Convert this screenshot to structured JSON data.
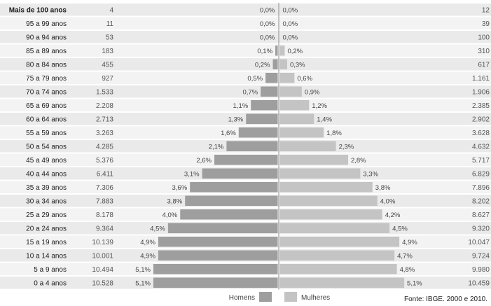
{
  "chart_data": {
    "type": "bar",
    "orientation": "horizontal-pyramid",
    "categories": [
      "Mais de 100 anos",
      "95 a 99 anos",
      "90 a 94 anos",
      "85 a 89 anos",
      "80 a 84 anos",
      "75 a 79 anos",
      "70 a 74 anos",
      "65 a 69 anos",
      "60 a 64 anos",
      "55 a 59 anos",
      "50 a 54 anos",
      "45 a 49 anos",
      "40 a 44 anos",
      "35 a 39 anos",
      "30 a 34 anos",
      "25 a 29 anos",
      "20 a 24 anos",
      "15 a 19 anos",
      "10 a 14 anos",
      "5 a 9 anos",
      "0 a 4 anos"
    ],
    "series": [
      {
        "name": "Homens",
        "color": "#9e9e9e",
        "counts": [
          "4",
          "11",
          "53",
          "183",
          "455",
          "927",
          "1.533",
          "2.208",
          "2.713",
          "3.263",
          "4.285",
          "5.376",
          "6.411",
          "7.306",
          "7.883",
          "8.178",
          "9.364",
          "10.139",
          "10.001",
          "10.494",
          "10.528"
        ],
        "percent_labels": [
          "0,0%",
          "0,0%",
          "0,0%",
          "0,1%",
          "0,2%",
          "0,5%",
          "0,7%",
          "1,1%",
          "1,3%",
          "1,6%",
          "2,1%",
          "2,6%",
          "3,1%",
          "3,6%",
          "3,8%",
          "4,0%",
          "4,5%",
          "4,9%",
          "4,9%",
          "5,1%",
          "5,1%"
        ],
        "values": [
          0.0,
          0.0,
          0.0,
          0.1,
          0.2,
          0.5,
          0.7,
          1.1,
          1.3,
          1.6,
          2.1,
          2.6,
          3.1,
          3.6,
          3.8,
          4.0,
          4.5,
          4.9,
          4.9,
          5.1,
          5.1
        ]
      },
      {
        "name": "Mulheres",
        "color": "#c4c4c4",
        "counts": [
          "12",
          "39",
          "100",
          "310",
          "617",
          "1.161",
          "1.906",
          "2.385",
          "2.902",
          "3.628",
          "4.632",
          "5.717",
          "6.829",
          "7.896",
          "8.202",
          "8.627",
          "9.320",
          "10.047",
          "9.724",
          "9.980",
          "10.459"
        ],
        "percent_labels": [
          "0,0%",
          "0,0%",
          "0,0%",
          "0,2%",
          "0,3%",
          "0,6%",
          "0,9%",
          "1,2%",
          "1,4%",
          "1,8%",
          "2,3%",
          "2,8%",
          "3,3%",
          "3,8%",
          "4,0%",
          "4,2%",
          "4,5%",
          "4,9%",
          "4,7%",
          "4,8%",
          "5,1%"
        ],
        "values": [
          0.0,
          0.0,
          0.0,
          0.2,
          0.3,
          0.6,
          0.9,
          1.2,
          1.4,
          1.8,
          2.3,
          2.8,
          3.3,
          3.8,
          4.0,
          4.2,
          4.5,
          4.9,
          4.7,
          4.8,
          5.1
        ]
      }
    ],
    "xlim": [
      0,
      5.4
    ],
    "legend": "bottom-center",
    "grid": false,
    "title": "",
    "xlabel": "",
    "ylabel": ""
  },
  "source": "Fonte: IBGE. 2000 e 2010.",
  "colors": {
    "row_band": "#eaeaea",
    "row_band_alt": "#f3f3f3",
    "center_line": "#777777"
  }
}
